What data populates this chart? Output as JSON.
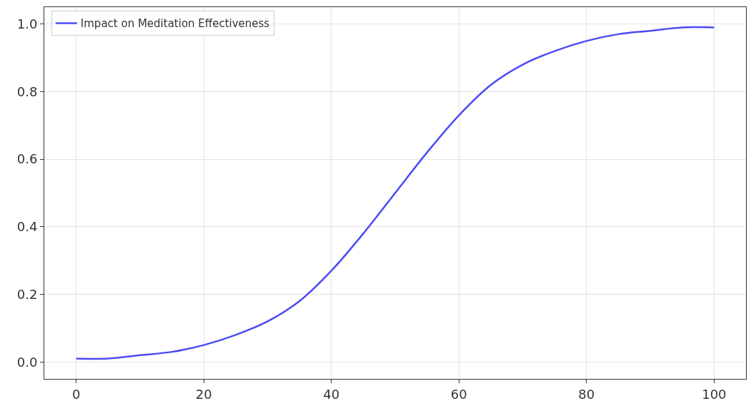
{
  "chart_data": {
    "type": "line",
    "x": [
      0,
      5,
      10,
      15,
      20,
      25,
      30,
      35,
      40,
      45,
      50,
      55,
      60,
      65,
      70,
      75,
      80,
      85,
      90,
      95,
      100
    ],
    "series": [
      {
        "name": "Impact on Meditation Effectiveness",
        "color": "#4b4bf5",
        "values": [
          0.01,
          0.01,
          0.02,
          0.03,
          0.05,
          0.08,
          0.12,
          0.18,
          0.27,
          0.38,
          0.5,
          0.62,
          0.73,
          0.82,
          0.88,
          0.92,
          0.95,
          0.97,
          0.98,
          0.99,
          0.99
        ]
      }
    ],
    "xlim": [
      -5,
      105
    ],
    "xticks": [
      0,
      20,
      40,
      60,
      80,
      100
    ],
    "ylim": [
      -0.05,
      1.05
    ],
    "yticks": [
      {
        "value": 0,
        "label": "0.0"
      },
      {
        "value": 0.2,
        "label": "0.2"
      },
      {
        "value": 0.4,
        "label": "0.4"
      },
      {
        "value": 0.6,
        "label": "0.6"
      },
      {
        "value": 0.8,
        "label": "0.8"
      },
      {
        "value": 1,
        "label": "1.0"
      }
    ],
    "grid": true,
    "legend": "top left",
    "line_style": "solid",
    "marker": "none"
  }
}
